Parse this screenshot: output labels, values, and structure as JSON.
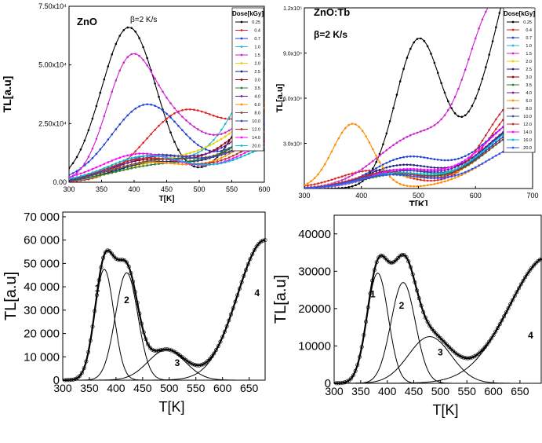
{
  "chart_data": [
    {
      "panel": "top-left",
      "type": "line",
      "title": "ZnO",
      "annotation": "β=2 K/s",
      "xlabel": "T[K]",
      "ylabel": "TL[a.u]",
      "xlim": [
        300,
        600
      ],
      "ylim": [
        0,
        75000
      ],
      "x_ticks": [
        "300",
        "350",
        "400",
        "450",
        "500",
        "550",
        "600"
      ],
      "y_ticks": [
        "0.00",
        "2.50x10⁴",
        "5.00x10⁴",
        "7.50x10⁴"
      ],
      "legend_title": "Dose[kGy]",
      "legend_position": "top-right",
      "series": [
        {
          "name": "0.25",
          "color": "#000000",
          "peaks": [
            [
              392,
              66000,
              42
            ],
            [
              640,
              60000,
              60
            ]
          ],
          "tail": 0
        },
        {
          "name": "0.4",
          "color": "#e02020",
          "peaks": [
            [
              475,
              29000,
              58
            ],
            [
              650,
              40000,
              70
            ]
          ],
          "tail": 0
        },
        {
          "name": "0.7",
          "color": "#1e3fd6",
          "peaks": [
            [
              420,
              33000,
              55
            ],
            [
              640,
              30000,
              70
            ]
          ],
          "tail": 0
        },
        {
          "name": "1.0",
          "color": "#20b8d0",
          "peaks": [
            [
              440,
              9000,
              60
            ],
            [
              620,
              55000,
              60
            ]
          ],
          "tail": 0
        },
        {
          "name": "1.5",
          "color": "#d020d0",
          "peaks": [
            [
              390,
              41000,
              35
            ],
            [
              450,
              25000,
              50
            ],
            [
              660,
              50000,
              80
            ]
          ],
          "tail": 0
        },
        {
          "name": "2.0",
          "color": "#e8d000",
          "peaks": [
            [
              450,
              8000,
              70
            ],
            [
              640,
              35000,
              80
            ]
          ],
          "tail": 0
        },
        {
          "name": "2.5",
          "color": "#1a237e",
          "peaks": [
            [
              430,
              8000,
              60
            ],
            [
              650,
              30000,
              80
            ]
          ],
          "tail": 0
        },
        {
          "name": "3.0",
          "color": "#8b0000",
          "peaks": [
            [
              420,
              9000,
              60
            ],
            [
              640,
              34000,
              80
            ]
          ],
          "tail": 0
        },
        {
          "name": "3.5",
          "color": "#2e7d32",
          "peaks": [
            [
              440,
              7000,
              70
            ],
            [
              650,
              28000,
              80
            ]
          ],
          "tail": 0
        },
        {
          "name": "4.0",
          "color": "#6a1b9a",
          "peaks": [
            [
              430,
              10000,
              60
            ],
            [
              640,
              30000,
              80
            ]
          ],
          "tail": 0
        },
        {
          "name": "6.0",
          "color": "#ff8c00",
          "peaks": [
            [
              420,
              8000,
              60
            ],
            [
              650,
              26000,
              80
            ]
          ],
          "tail": 0
        },
        {
          "name": "8.0",
          "color": "#6d4c41",
          "peaks": [
            [
              440,
              9000,
              70
            ],
            [
              650,
              24000,
              80
            ]
          ],
          "tail": 0
        },
        {
          "name": "10.0",
          "color": "#3949ab",
          "peaks": [
            [
              430,
              11000,
              60
            ],
            [
              640,
              22000,
              80
            ]
          ],
          "tail": 0
        },
        {
          "name": "12.0",
          "color": "#c62828",
          "peaks": [
            [
              420,
              10000,
              60
            ],
            [
              650,
              22000,
              80
            ]
          ],
          "tail": 0
        },
        {
          "name": "14.0",
          "color": "#ff00ff",
          "peaks": [
            [
              410,
              12000,
              60
            ],
            [
              650,
              20000,
              80
            ]
          ],
          "tail": 0
        },
        {
          "name": "20.0",
          "color": "#00bcd4",
          "peaks": [
            [
              420,
              11000,
              60
            ],
            [
              650,
              18000,
              80
            ]
          ],
          "tail": 0
        }
      ]
    },
    {
      "panel": "top-right",
      "type": "line",
      "title": "ZnO:Tb",
      "annotation": "β=2 K/s",
      "xlabel": "T[K]",
      "ylabel": "TL[a.u]",
      "xlim": [
        300,
        700
      ],
      "ylim": [
        0,
        120000
      ],
      "x_ticks": [
        "300",
        "400",
        "500",
        "600",
        "700"
      ],
      "y_ticks": [
        "3.0x10⁴",
        "6.0x10⁴",
        "9.0x10⁴",
        "1.2x10⁵"
      ],
      "legend_title": "Dose[kGy]",
      "legend_position": "top-right",
      "series": [
        {
          "name": "0.25",
          "color": "#000000",
          "peaks": [
            [
              500,
              97000,
              40
            ],
            [
              720,
              200000,
              75
            ]
          ],
          "tail": 0
        },
        {
          "name": "0.4",
          "color": "#e02020",
          "peaks": [
            [
              420,
              12000,
              60
            ],
            [
              700,
              60000,
              70
            ]
          ],
          "tail": 0
        },
        {
          "name": "0.7",
          "color": "#1e3fd6",
          "peaks": [
            [
              480,
              20000,
              60
            ],
            [
              700,
              50000,
              80
            ]
          ],
          "tail": 0
        },
        {
          "name": "1.0",
          "color": "#20b8d0",
          "peaks": [
            [
              450,
              10000,
              60
            ],
            [
              700,
              45000,
              80
            ]
          ],
          "tail": 0
        },
        {
          "name": "1.5",
          "color": "#d020d0",
          "peaks": [
            [
              500,
              35000,
              70
            ],
            [
              640,
              120000,
              50
            ]
          ],
          "tail": 0
        },
        {
          "name": "2.0",
          "color": "#e8d000",
          "peaks": [
            [
              440,
              9000,
              60
            ],
            [
              700,
              40000,
              80
            ]
          ],
          "tail": 0
        },
        {
          "name": "2.5",
          "color": "#1a237e",
          "peaks": [
            [
              470,
              15000,
              60
            ],
            [
              700,
              45000,
              80
            ]
          ],
          "tail": 0
        },
        {
          "name": "3.0",
          "color": "#8b0000",
          "peaks": [
            [
              450,
              10000,
              60
            ],
            [
              700,
              42000,
              80
            ]
          ],
          "tail": 0
        },
        {
          "name": "3.5",
          "color": "#2e7d32",
          "peaks": [
            [
              460,
              9000,
              60
            ],
            [
              700,
              40000,
              80
            ]
          ],
          "tail": 0
        },
        {
          "name": "4.0",
          "color": "#6a1b9a",
          "peaks": [
            [
              470,
              11000,
              60
            ],
            [
              700,
              46000,
              80
            ]
          ],
          "tail": 0
        },
        {
          "name": "6.0",
          "color": "#ff8c00",
          "peaks": [
            [
              385,
              43000,
              35
            ],
            [
              700,
              30000,
              80
            ]
          ],
          "tail": 0
        },
        {
          "name": "8.0",
          "color": "#6d4c41",
          "peaks": [
            [
              450,
              10000,
              60
            ],
            [
              700,
              40000,
              80
            ]
          ],
          "tail": 0
        },
        {
          "name": "10.0",
          "color": "#3949ab",
          "peaks": [
            [
              460,
              12000,
              60
            ],
            [
              700,
              42000,
              80
            ]
          ],
          "tail": 0
        },
        {
          "name": "12.0",
          "color": "#c62828",
          "peaks": [
            [
              450,
              11000,
              60
            ],
            [
              680,
              60000,
              60
            ]
          ],
          "tail": 0
        },
        {
          "name": "14.0",
          "color": "#ff00ff",
          "peaks": [
            [
              470,
              12000,
              60
            ],
            [
              700,
              50000,
              80
            ]
          ],
          "tail": 0
        },
        {
          "name": "16.0",
          "color": "#00bcd4",
          "peaks": [
            [
              460,
              10000,
              60
            ],
            [
              700,
              44000,
              80
            ]
          ],
          "tail": 0
        },
        {
          "name": "20.0",
          "color": "#304ffe",
          "peaks": [
            [
              450,
              9000,
              60
            ],
            [
              700,
              30000,
              80
            ]
          ],
          "tail": 0
        }
      ]
    },
    {
      "panel": "bottom-left",
      "type": "line",
      "xlabel": "T[K]",
      "ylabel": "TL[a.u]",
      "xlim": [
        300,
        680
      ],
      "ylim": [
        0,
        72000
      ],
      "x_ticks": [
        "300",
        "350",
        "400",
        "450",
        "500",
        "550",
        "600",
        "650"
      ],
      "y_ticks": [
        "0",
        "10 000",
        "20 000",
        "30 000",
        "40 000",
        "50 000",
        "60 000",
        "70 000"
      ],
      "components": [
        {
          "label": "1",
          "center": 378,
          "height": 47500,
          "width": 18,
          "label_at": [
            360,
            38000
          ]
        },
        {
          "label": "2",
          "center": 420,
          "height": 46000,
          "width": 21,
          "label_at": [
            415,
            33000
          ]
        },
        {
          "label": "3",
          "center": 495,
          "height": 13000,
          "width": 35,
          "label_at": [
            510,
            6000
          ]
        },
        {
          "label": "4",
          "center": 680,
          "height": 60000,
          "width": 52,
          "label_at": [
            660,
            36000
          ]
        }
      ],
      "measured_points": "total"
    },
    {
      "panel": "bottom-right",
      "type": "line",
      "xlabel": "T[K]",
      "ylabel": "TL[a.u]",
      "xlim": [
        300,
        690
      ],
      "ylim": [
        0,
        45000
      ],
      "x_ticks": [
        "300",
        "350",
        "400",
        "450",
        "500",
        "550",
        "600",
        "650"
      ],
      "y_ticks": [
        "0",
        "10000",
        "20000",
        "30000",
        "40000"
      ],
      "components": [
        {
          "label": "1",
          "center": 382,
          "height": 29500,
          "width": 20,
          "label_at": [
            368,
            23000
          ]
        },
        {
          "label": "2",
          "center": 430,
          "height": 27000,
          "width": 23,
          "label_at": [
            422,
            20000
          ]
        },
        {
          "label": "3",
          "center": 480,
          "height": 12500,
          "width": 40,
          "label_at": [
            495,
            7500
          ]
        },
        {
          "label": "4",
          "center": 705,
          "height": 34000,
          "width": 75,
          "label_at": [
            665,
            12000
          ]
        }
      ],
      "measured_points": "total"
    }
  ]
}
